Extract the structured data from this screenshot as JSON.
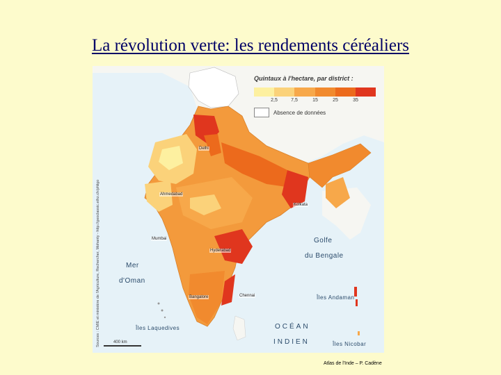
{
  "title": "La révolution verte: les rendements céréaliers",
  "legend": {
    "title": "Quintaux à l'hectare, par district :",
    "ticks": [
      "2,5",
      "7,5",
      "15",
      "25",
      "35"
    ],
    "colors": [
      "#fdf0a0",
      "#fbd27a",
      "#f7a84a",
      "#f18a2e",
      "#ec6a1c",
      "#e0361e"
    ],
    "no_data": "Absence de données"
  },
  "cities": {
    "delhi": "Delhi",
    "ahmedabad": "Ahmedabad",
    "kolkata": "Kolkata",
    "mumbai": "Mumbai",
    "hyderabad": "Hyderabad",
    "chennai": "Chennai",
    "bangalore": "Bangalore"
  },
  "seas": {
    "mer": "Mer",
    "oman": "d'Oman",
    "golfe": "Golfe",
    "bengale": "du Bengale",
    "ocean": "OCÉAN",
    "indien": "INDIEN",
    "andaman": "Îles Andaman",
    "nicobar": "Îles Nicobar",
    "laquedives": "Îles Laquedives"
  },
  "source": "Sources : CMIE et ministère de l'Agriculture, Rechercher, Mohanty - http://geoclassic.ethz.ch/phligo",
  "scale": "400 km",
  "credit": "Atlas de l'Inde – P. Cadène"
}
